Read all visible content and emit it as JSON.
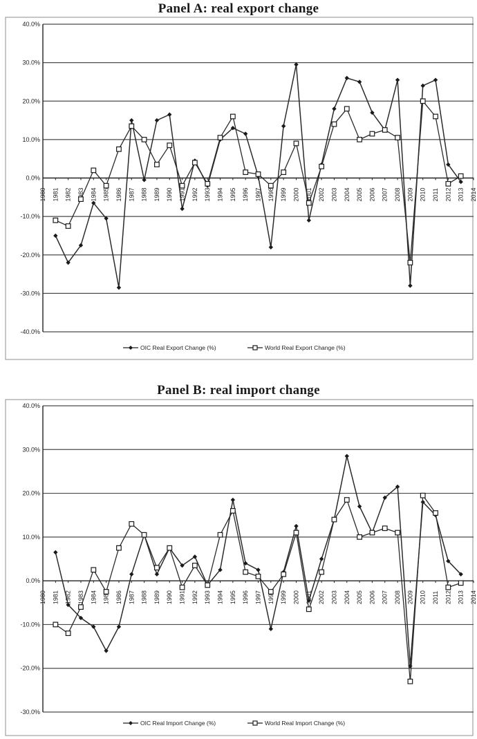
{
  "colors": {
    "line": "#2a2a2a",
    "grid": "#4a4a4a",
    "background": "#ffffff"
  },
  "chart_data": [
    {
      "type": "line",
      "title": "Panel A: real export change",
      "xlabel": "",
      "ylabel": "",
      "ylim": [
        -40,
        40
      ],
      "yticks": [
        "40.0%",
        "30.0%",
        "20.0%",
        "10.0%",
        "0.0%",
        "-10.0%",
        "-20.0%",
        "-30.0%",
        "-40.0%"
      ],
      "x_ticks": [
        "1980",
        "1981",
        "1982",
        "1983",
        "1984",
        "1985",
        "1986",
        "1987",
        "1988",
        "1989",
        "1990",
        "1991",
        "1992",
        "1993",
        "1994",
        "1995",
        "1996",
        "1997",
        "1998",
        "1999",
        "2000",
        "2001",
        "2002",
        "2003",
        "2004",
        "2005",
        "2006",
        "2007",
        "2008",
        "2009",
        "2010",
        "2011",
        "2012",
        "2013",
        "2014"
      ],
      "grid": true,
      "legend_position": "bottom",
      "x": [
        1981,
        1982,
        1983,
        1984,
        1985,
        1986,
        1987,
        1988,
        1989,
        1990,
        1991,
        1992,
        1993,
        1994,
        1995,
        1996,
        1997,
        1998,
        1999,
        2000,
        2001,
        2002,
        2003,
        2004,
        2005,
        2006,
        2007,
        2008,
        2009,
        2010,
        2011,
        2012,
        2013
      ],
      "series": [
        {
          "name": "OIC Real Export Change (%)",
          "marker": "diamond",
          "values": [
            -15,
            -22,
            -17.5,
            -6.5,
            -10.5,
            -28.5,
            15,
            -0.5,
            15,
            16.5,
            -8,
            4.5,
            -2,
            10,
            13,
            11.5,
            0.5,
            -18,
            13.5,
            29.5,
            -11,
            3.5,
            18,
            26,
            25,
            17,
            12.5,
            25.5,
            -28,
            24,
            25.5,
            3.5,
            -1
          ]
        },
        {
          "name": "World Real Export Change (%)",
          "marker": "square",
          "values": [
            -11,
            -12.5,
            -5.5,
            2,
            -2,
            7.5,
            13.5,
            10,
            3.5,
            8.5,
            -2,
            4,
            -1.5,
            10.5,
            16,
            1.5,
            1,
            -2,
            1.5,
            9,
            -6.5,
            3,
            14,
            18,
            10,
            11.5,
            12.5,
            10.5,
            -22,
            20,
            16,
            -1.5,
            0.5
          ]
        }
      ]
    },
    {
      "type": "line",
      "title": "Panel B: real import change",
      "xlabel": "",
      "ylabel": "",
      "ylim": [
        -30,
        40
      ],
      "yticks": [
        "40.0%",
        "30.0%",
        "20.0%",
        "10.0%",
        "0.0%",
        "-10.0%",
        "-20.0%",
        "-30.0%"
      ],
      "x_ticks": [
        "1980",
        "1981",
        "1982",
        "1983",
        "1984",
        "1985",
        "1986",
        "1987",
        "1988",
        "1989",
        "1990",
        "1991",
        "1992",
        "1993",
        "1994",
        "1995",
        "1996",
        "1997",
        "1998",
        "1999",
        "2000",
        "2001",
        "2002",
        "2003",
        "2004",
        "2005",
        "2006",
        "2007",
        "2008",
        "2009",
        "2010",
        "2011",
        "2012",
        "2013",
        "2014"
      ],
      "grid": true,
      "legend_position": "bottom",
      "x": [
        1981,
        1982,
        1983,
        1984,
        1985,
        1986,
        1987,
        1988,
        1989,
        1990,
        1991,
        1992,
        1993,
        1994,
        1995,
        1996,
        1997,
        1998,
        1999,
        2000,
        2001,
        2002,
        2003,
        2004,
        2005,
        2006,
        2007,
        2008,
        2009,
        2010,
        2011,
        2012,
        2013
      ],
      "series": [
        {
          "name": "OIC Real Import Change (%)",
          "marker": "diamond",
          "values": [
            6.5,
            -5.5,
            -8.5,
            -10.5,
            -16,
            -10.5,
            1.5,
            10.5,
            1.5,
            7.5,
            3.5,
            5.5,
            -1,
            2.5,
            18.5,
            4,
            2.5,
            -11,
            2,
            12.5,
            -4.5,
            5,
            14,
            28.5,
            17,
            11,
            19,
            21.5,
            -19.5,
            18,
            15,
            4.5,
            1.5
          ]
        },
        {
          "name": "World Real Import Change (%)",
          "marker": "square",
          "values": [
            -10,
            -12,
            -6,
            2.5,
            -2.5,
            7.5,
            13,
            10.5,
            3,
            7.5,
            -1.5,
            3.5,
            -1,
            10.5,
            16,
            2,
            1,
            -2.5,
            1.5,
            11,
            -6.5,
            2,
            14,
            18.5,
            10,
            11,
            12,
            11,
            -23,
            19.5,
            15.5,
            -1.5,
            -0.5
          ]
        }
      ]
    }
  ]
}
